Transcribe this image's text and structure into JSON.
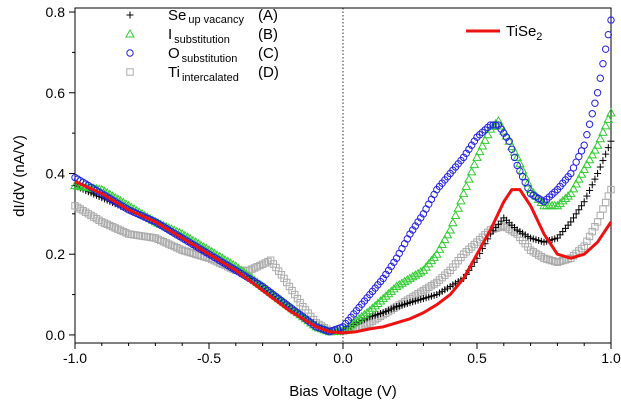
{
  "chart_data": {
    "type": "scatter",
    "xlabel": "Bias Voltage (V)",
    "ylabel": "dI/dV (nA/V)",
    "xlim": [
      -1.0,
      1.0
    ],
    "ylim": [
      -0.02,
      0.81
    ],
    "x_ticks": [
      "-1.0",
      "-0.5",
      "0.0",
      "0.5",
      "1.0"
    ],
    "x_tick_values": [
      -1.0,
      -0.5,
      0.0,
      0.5,
      1.0
    ],
    "y_ticks": [
      "0.0",
      "0.2",
      "0.4",
      "0.6",
      "0.8"
    ],
    "y_tick_values": [
      0.0,
      0.2,
      0.4,
      0.6,
      0.8
    ],
    "zero_line": "dotted vertical at x = 0",
    "grid": false,
    "legend_placement": "top-left",
    "series": [
      {
        "name": "Se",
        "name_sub": "up vacancy",
        "tag": "(A)",
        "marker": "plus",
        "color": "#000000",
        "x": [
          -1.0,
          -0.9,
          -0.8,
          -0.7,
          -0.6,
          -0.5,
          -0.4,
          -0.3,
          -0.2,
          -0.1,
          -0.05,
          0.0,
          0.05,
          0.1,
          0.15,
          0.2,
          0.25,
          0.3,
          0.35,
          0.4,
          0.45,
          0.5,
          0.55,
          0.6,
          0.65,
          0.7,
          0.75,
          0.8,
          0.85,
          0.9,
          0.95,
          1.0
        ],
        "y": [
          0.37,
          0.34,
          0.31,
          0.28,
          0.24,
          0.2,
          0.16,
          0.12,
          0.07,
          0.025,
          0.008,
          0.008,
          0.03,
          0.045,
          0.055,
          0.07,
          0.08,
          0.09,
          0.1,
          0.12,
          0.14,
          0.19,
          0.25,
          0.29,
          0.26,
          0.24,
          0.23,
          0.24,
          0.28,
          0.33,
          0.4,
          0.48
        ]
      },
      {
        "name": "I",
        "name_sub": "substitution",
        "tag": "(B)",
        "marker": "triangle",
        "color": "#33cc33",
        "x": [
          -1.0,
          -0.9,
          -0.8,
          -0.7,
          -0.6,
          -0.5,
          -0.4,
          -0.3,
          -0.2,
          -0.1,
          -0.05,
          0.0,
          0.05,
          0.1,
          0.15,
          0.2,
          0.25,
          0.3,
          0.35,
          0.4,
          0.45,
          0.5,
          0.55,
          0.58,
          0.62,
          0.65,
          0.7,
          0.75,
          0.8,
          0.85,
          0.9,
          0.95,
          1.0
        ],
        "y": [
          0.37,
          0.36,
          0.32,
          0.28,
          0.25,
          0.21,
          0.17,
          0.12,
          0.07,
          0.02,
          0.008,
          0.01,
          0.035,
          0.06,
          0.09,
          0.12,
          0.14,
          0.16,
          0.2,
          0.26,
          0.35,
          0.44,
          0.51,
          0.53,
          0.48,
          0.44,
          0.36,
          0.32,
          0.32,
          0.35,
          0.41,
          0.47,
          0.55
        ]
      },
      {
        "name": "O",
        "name_sub": "substitution",
        "tag": "(C)",
        "marker": "circle",
        "color": "#2222dd",
        "x": [
          -1.0,
          -0.9,
          -0.8,
          -0.7,
          -0.6,
          -0.5,
          -0.4,
          -0.3,
          -0.2,
          -0.1,
          -0.05,
          0.0,
          0.05,
          0.1,
          0.15,
          0.2,
          0.25,
          0.3,
          0.35,
          0.4,
          0.45,
          0.5,
          0.55,
          0.58,
          0.62,
          0.65,
          0.7,
          0.75,
          0.8,
          0.85,
          0.9,
          0.95,
          1.0
        ],
        "y": [
          0.39,
          0.35,
          0.31,
          0.28,
          0.24,
          0.2,
          0.16,
          0.12,
          0.07,
          0.02,
          0.008,
          0.02,
          0.06,
          0.1,
          0.14,
          0.19,
          0.25,
          0.3,
          0.36,
          0.4,
          0.44,
          0.49,
          0.52,
          0.52,
          0.48,
          0.42,
          0.35,
          0.33,
          0.36,
          0.4,
          0.47,
          0.6,
          0.78
        ]
      },
      {
        "name": "Ti",
        "name_sub": "intercalated",
        "tag": "(D)",
        "marker": "square",
        "color": "#aaaaaa",
        "x": [
          -1.0,
          -0.9,
          -0.8,
          -0.7,
          -0.6,
          -0.5,
          -0.4,
          -0.35,
          -0.3,
          -0.27,
          -0.22,
          -0.15,
          -0.1,
          -0.05,
          0.0,
          0.05,
          0.1,
          0.15,
          0.2,
          0.25,
          0.3,
          0.35,
          0.4,
          0.45,
          0.5,
          0.55,
          0.6,
          0.65,
          0.7,
          0.75,
          0.8,
          0.85,
          0.9,
          0.95,
          1.0
        ],
        "y": [
          0.32,
          0.28,
          0.25,
          0.24,
          0.21,
          0.19,
          0.16,
          0.16,
          0.175,
          0.185,
          0.14,
          0.07,
          0.03,
          0.01,
          0.01,
          0.015,
          0.03,
          0.05,
          0.07,
          0.09,
          0.11,
          0.13,
          0.16,
          0.2,
          0.23,
          0.26,
          0.27,
          0.25,
          0.21,
          0.19,
          0.18,
          0.19,
          0.22,
          0.28,
          0.36
        ]
      },
      {
        "name": "TiSe",
        "name_sub": "2",
        "marker": "line",
        "color": "#ee1111",
        "x": [
          -1.0,
          -0.9,
          -0.8,
          -0.7,
          -0.6,
          -0.5,
          -0.4,
          -0.3,
          -0.2,
          -0.1,
          -0.05,
          0.0,
          0.05,
          0.1,
          0.15,
          0.2,
          0.25,
          0.3,
          0.35,
          0.4,
          0.45,
          0.5,
          0.55,
          0.6,
          0.63,
          0.66,
          0.7,
          0.75,
          0.8,
          0.85,
          0.9,
          0.95,
          1.0
        ],
        "y": [
          0.38,
          0.35,
          0.31,
          0.28,
          0.24,
          0.2,
          0.16,
          0.11,
          0.06,
          0.02,
          0.008,
          0.005,
          0.008,
          0.015,
          0.02,
          0.03,
          0.04,
          0.055,
          0.075,
          0.1,
          0.14,
          0.2,
          0.26,
          0.33,
          0.36,
          0.36,
          0.32,
          0.25,
          0.2,
          0.19,
          0.2,
          0.23,
          0.28
        ]
      }
    ]
  }
}
